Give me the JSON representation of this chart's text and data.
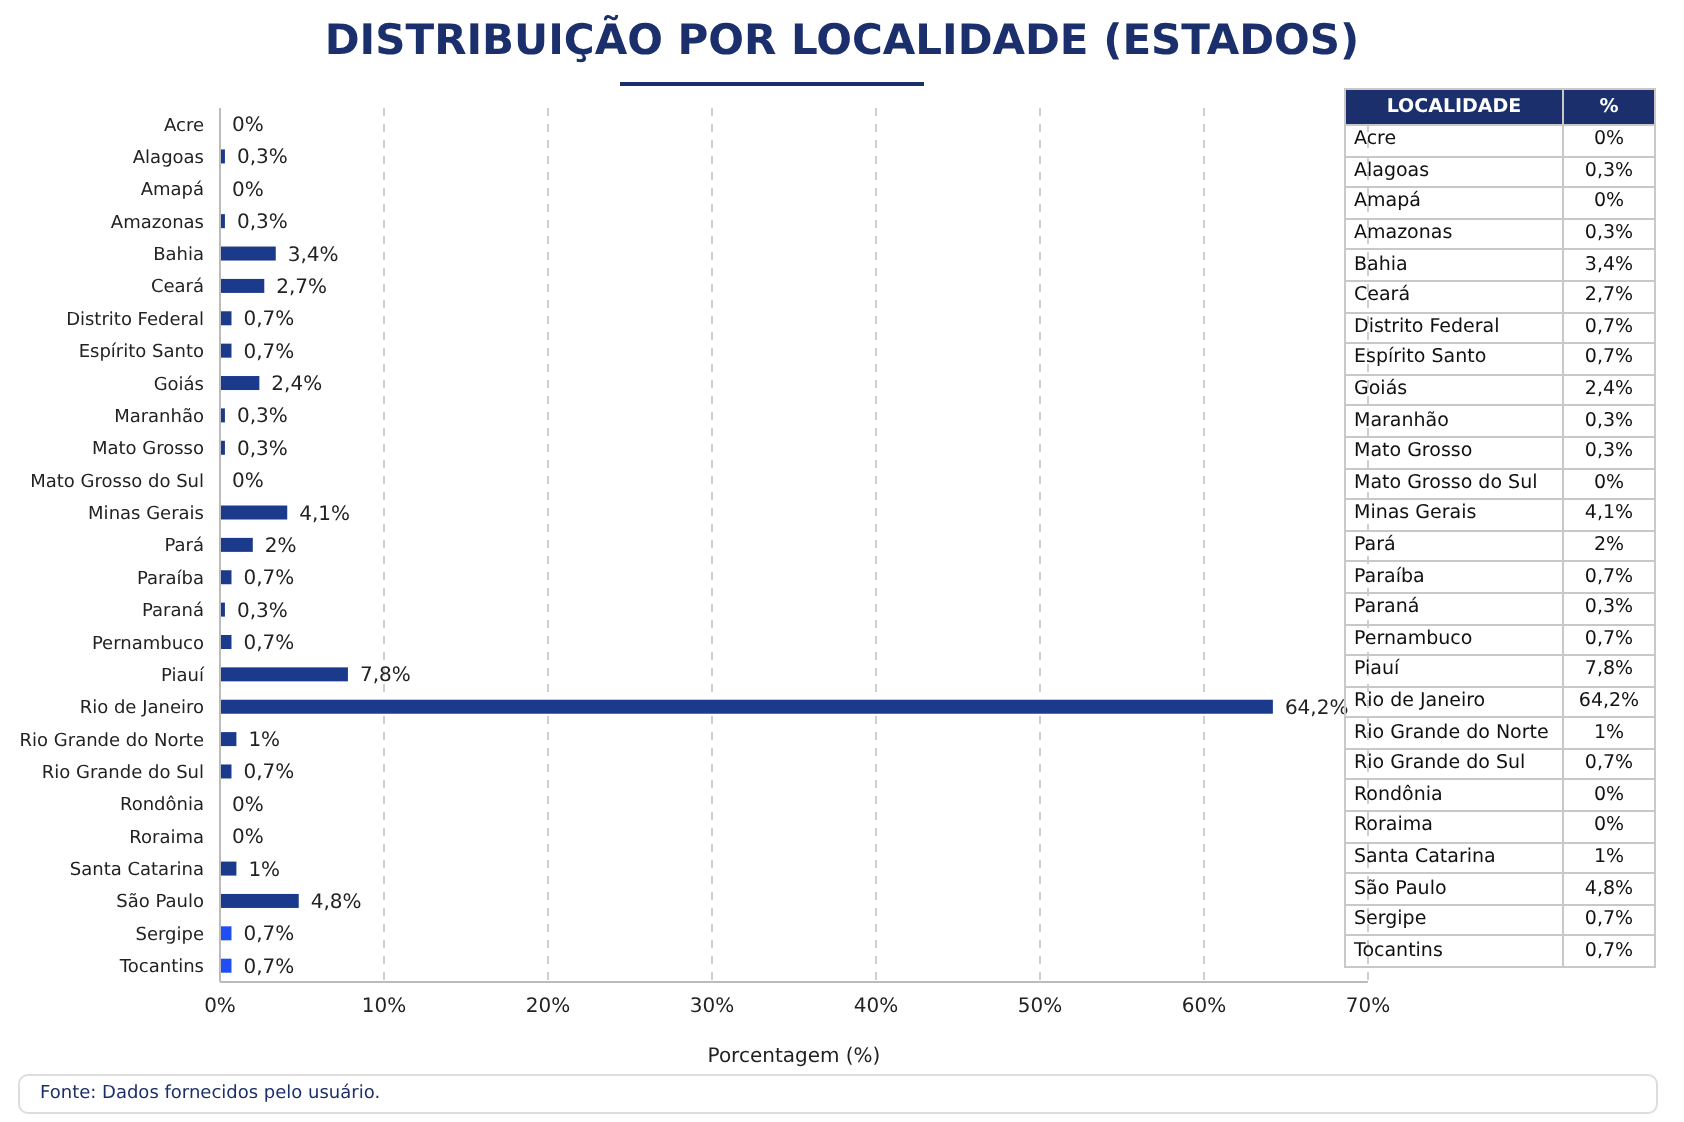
{
  "chart_data": {
    "type": "bar",
    "orientation": "horizontal",
    "title": "DISTRIBUIÇÃO POR LOCALIDADE (ESTADOS)",
    "xlabel": "Porcentagem (%)",
    "categories": [
      "Acre",
      "Alagoas",
      "Amapá",
      "Amazonas",
      "Bahia",
      "Ceará",
      "Distrito Federal",
      "Espírito Santo",
      "Goiás",
      "Maranhão",
      "Mato Grosso",
      "Mato Grosso do Sul",
      "Minas Gerais",
      "Pará",
      "Paraíba",
      "Paraná",
      "Pernambuco",
      "Piauí",
      "Rio de Janeiro",
      "Rio Grande do Norte",
      "Rio Grande do Sul",
      "Rondônia",
      "Roraima",
      "Santa Catarina",
      "São Paulo",
      "Sergipe",
      "Tocantins"
    ],
    "values": [
      0,
      0.3,
      0,
      0.3,
      3.4,
      2.7,
      0.7,
      0.7,
      2.4,
      0.3,
      0.3,
      0,
      4.1,
      2,
      0.7,
      0.3,
      0.7,
      7.8,
      64.2,
      1,
      0.7,
      0,
      0,
      1,
      4.8,
      0.7,
      0.7
    ],
    "value_labels": [
      "0%",
      "0,3%",
      "0%",
      "0,3%",
      "3,4%",
      "2,7%",
      "0,7%",
      "0,7%",
      "2,4%",
      "0,3%",
      "0,3%",
      "0%",
      "4,1%",
      "2%",
      "0,7%",
      "0,3%",
      "0,7%",
      "7,8%",
      "64,2%",
      "1%",
      "0,7%",
      "0%",
      "0%",
      "1%",
      "4,8%",
      "0,7%",
      "0,7%"
    ],
    "colors": [
      "#1b3a8c",
      "#1b3a8c",
      "#1b3a8c",
      "#1b3a8c",
      "#1b3a8c",
      "#1b3a8c",
      "#1b3a8c",
      "#1b3a8c",
      "#1b3a8c",
      "#1b3a8c",
      "#1b3a8c",
      "#1b3a8c",
      "#1b3a8c",
      "#1b3a8c",
      "#1b3a8c",
      "#1b3a8c",
      "#1b3a8c",
      "#1b3a8c",
      "#1b3a8c",
      "#1b3a8c",
      "#1b3a8c",
      "#1b3a8c",
      "#1b3a8c",
      "#1b3a8c",
      "#1b3a8c",
      "#1f4ef5",
      "#1f4ef5"
    ],
    "xlim": [
      0,
      70
    ],
    "xticks": [
      {
        "value": 0,
        "label": "0%"
      },
      {
        "value": 10,
        "label": "10%"
      },
      {
        "value": 20,
        "label": "20%"
      },
      {
        "value": 30,
        "label": "30%"
      },
      {
        "value": 40,
        "label": "40%"
      },
      {
        "value": 50,
        "label": "50%"
      },
      {
        "value": 60,
        "label": "60%"
      },
      {
        "value": 70,
        "label": "70%"
      }
    ],
    "grid": "x",
    "annotations": [
      "LOCALIDADE",
      "%",
      "Fonte: Dados fornecidos pelo usuário."
    ]
  }
}
